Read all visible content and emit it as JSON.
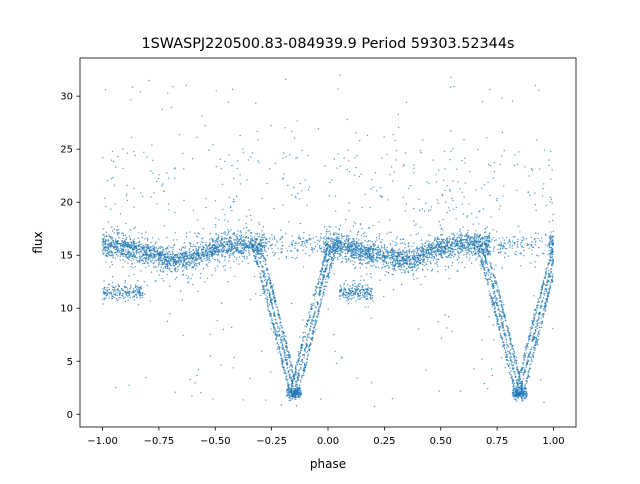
{
  "chart_data": {
    "type": "scatter",
    "title": "1SWASPJ220500.83-084939.9 Period 59303.52344s",
    "xlabel": "phase",
    "ylabel": "flux",
    "xlim": [
      -1.1,
      1.1
    ],
    "ylim": [
      -1.2,
      33.6
    ],
    "grid": false,
    "legend": "none",
    "point_color": "#1f77b4",
    "x_ticks": [
      -1.0,
      -0.75,
      -0.5,
      -0.25,
      0.0,
      0.25,
      0.5,
      0.75,
      1.0
    ],
    "x_tick_labels": [
      "−1.00",
      "−0.75",
      "−0.50",
      "−0.25",
      "0.00",
      "0.25",
      "0.50",
      "0.75",
      "1.00"
    ],
    "y_ticks": [
      0,
      5,
      10,
      15,
      20,
      25,
      30
    ],
    "y_tick_labels": [
      "0",
      "5",
      "10",
      "15",
      "20",
      "25",
      "30"
    ],
    "series": [
      {
        "baseline_profile": {
          "x": [
            -1.0,
            -0.9,
            -0.8,
            -0.7,
            -0.65,
            -0.6,
            -0.5,
            -0.4,
            -0.35,
            -0.3,
            -0.2,
            -0.1,
            0.0,
            0.1,
            0.2,
            0.3,
            0.35,
            0.4,
            0.5,
            0.6,
            0.65,
            0.7,
            0.8,
            0.9,
            1.0
          ],
          "y": [
            16.0,
            15.7,
            15.2,
            14.6,
            14.5,
            14.9,
            15.7,
            16.0,
            16.0,
            16.0,
            16.0,
            16.0,
            16.0,
            15.7,
            15.2,
            14.6,
            14.5,
            14.9,
            15.7,
            16.0,
            16.0,
            16.0,
            16.0,
            16.0,
            16.0
          ]
        },
        "eclipses": [
          {
            "phase_center": -0.15,
            "depth_flux": 2.0,
            "ingress_start": -0.32,
            "egress_end": 0.02,
            "tracks": 3
          },
          {
            "phase_center": 0.85,
            "depth_flux": 2.0,
            "ingress_start": 0.68,
            "egress_end": 1.02,
            "tracks": 3
          }
        ],
        "outlier_flux_range": [
          0.5,
          32.0
        ],
        "scatter_band": [
          12.0,
          19.0
        ]
      }
    ]
  }
}
